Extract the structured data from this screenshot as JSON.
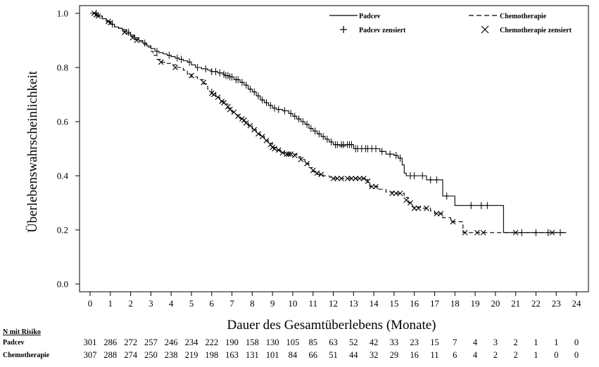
{
  "chart_data": {
    "type": "line",
    "ylabel": "Überlebenswahrscheinlichkeit",
    "xlabel": "Dauer des Gesamtüberlebens (Monate)",
    "xlim": [
      0,
      24
    ],
    "ylim": [
      0,
      1
    ],
    "x_ticks": [
      "0",
      "1",
      "2",
      "3",
      "4",
      "5",
      "6",
      "7",
      "8",
      "9",
      "10",
      "11",
      "12",
      "13",
      "14",
      "15",
      "16",
      "17",
      "18",
      "19",
      "20",
      "21",
      "22",
      "23",
      "24"
    ],
    "y_ticks": [
      "0.0",
      "0.2",
      "0.4",
      "0.6",
      "0.8",
      "1.0"
    ],
    "legend": {
      "line1": "Padcev",
      "line2": "Chemotherapie",
      "censor1": "Padcev zensiert",
      "censor2": "Chemotherapie zensiert"
    },
    "series": [
      {
        "name": "Padcev",
        "color": "#000000",
        "style": "solid",
        "steps": [
          [
            0,
            1.0
          ],
          [
            0.2,
            1.0
          ],
          [
            0.4,
            0.99
          ],
          [
            0.6,
            0.98
          ],
          [
            0.8,
            0.97
          ],
          [
            1.0,
            0.96
          ],
          [
            1.2,
            0.95
          ],
          [
            1.4,
            0.945
          ],
          [
            1.6,
            0.94
          ],
          [
            1.8,
            0.93
          ],
          [
            2.0,
            0.92
          ],
          [
            2.2,
            0.91
          ],
          [
            2.4,
            0.9
          ],
          [
            2.6,
            0.89
          ],
          [
            2.8,
            0.88
          ],
          [
            3.0,
            0.87
          ],
          [
            3.2,
            0.86
          ],
          [
            3.4,
            0.855
          ],
          [
            3.6,
            0.85
          ],
          [
            3.8,
            0.845
          ],
          [
            4.0,
            0.84
          ],
          [
            4.2,
            0.835
          ],
          [
            4.4,
            0.83
          ],
          [
            4.6,
            0.825
          ],
          [
            4.8,
            0.82
          ],
          [
            5.0,
            0.81
          ],
          [
            5.2,
            0.8
          ],
          [
            5.5,
            0.795
          ],
          [
            5.8,
            0.79
          ],
          [
            6.0,
            0.785
          ],
          [
            6.3,
            0.78
          ],
          [
            6.6,
            0.77
          ],
          [
            6.9,
            0.765
          ],
          [
            7.1,
            0.755
          ],
          [
            7.4,
            0.745
          ],
          [
            7.6,
            0.735
          ],
          [
            7.8,
            0.72
          ],
          [
            8.0,
            0.71
          ],
          [
            8.2,
            0.695
          ],
          [
            8.4,
            0.68
          ],
          [
            8.6,
            0.67
          ],
          [
            8.8,
            0.66
          ],
          [
            9.0,
            0.65
          ],
          [
            9.2,
            0.645
          ],
          [
            9.5,
            0.64
          ],
          [
            9.8,
            0.63
          ],
          [
            10.0,
            0.62
          ],
          [
            10.2,
            0.61
          ],
          [
            10.4,
            0.6
          ],
          [
            10.6,
            0.59
          ],
          [
            10.8,
            0.575
          ],
          [
            11.0,
            0.565
          ],
          [
            11.2,
            0.555
          ],
          [
            11.4,
            0.545
          ],
          [
            11.6,
            0.535
          ],
          [
            11.8,
            0.525
          ],
          [
            12.0,
            0.515
          ],
          [
            12.3,
            0.51
          ],
          [
            12.6,
            0.515
          ],
          [
            13.0,
            0.5
          ],
          [
            13.5,
            0.5
          ],
          [
            14.0,
            0.5
          ],
          [
            14.3,
            0.49
          ],
          [
            14.6,
            0.48
          ],
          [
            15.0,
            0.475
          ],
          [
            15.2,
            0.465
          ],
          [
            15.4,
            0.44
          ],
          [
            15.5,
            0.41
          ],
          [
            15.6,
            0.4
          ],
          [
            16.2,
            0.4
          ],
          [
            16.6,
            0.385
          ],
          [
            17.3,
            0.385
          ],
          [
            17.4,
            0.325
          ],
          [
            17.8,
            0.325
          ],
          [
            18.0,
            0.29
          ],
          [
            20.4,
            0.29
          ],
          [
            20.4,
            0.19
          ],
          [
            23.5,
            0.19
          ]
        ],
        "censored": [
          [
            0.3,
            1.0
          ],
          [
            1.1,
            0.96
          ],
          [
            1.9,
            0.93
          ],
          [
            2.7,
            0.89
          ],
          [
            3.3,
            0.86
          ],
          [
            3.9,
            0.845
          ],
          [
            4.3,
            0.835
          ],
          [
            4.5,
            0.83
          ],
          [
            4.9,
            0.82
          ],
          [
            5.3,
            0.8
          ],
          [
            5.7,
            0.795
          ],
          [
            6.0,
            0.785
          ],
          [
            6.2,
            0.785
          ],
          [
            6.4,
            0.78
          ],
          [
            6.6,
            0.775
          ],
          [
            6.7,
            0.77
          ],
          [
            6.8,
            0.77
          ],
          [
            6.9,
            0.765
          ],
          [
            7.0,
            0.765
          ],
          [
            7.2,
            0.755
          ],
          [
            7.3,
            0.755
          ],
          [
            7.5,
            0.745
          ],
          [
            7.7,
            0.735
          ],
          [
            7.9,
            0.72
          ],
          [
            8.1,
            0.71
          ],
          [
            8.3,
            0.695
          ],
          [
            8.5,
            0.68
          ],
          [
            8.7,
            0.67
          ],
          [
            8.9,
            0.66
          ],
          [
            9.1,
            0.65
          ],
          [
            9.3,
            0.645
          ],
          [
            9.6,
            0.64
          ],
          [
            9.9,
            0.63
          ],
          [
            10.1,
            0.62
          ],
          [
            10.3,
            0.61
          ],
          [
            10.5,
            0.6
          ],
          [
            10.7,
            0.59
          ],
          [
            10.9,
            0.575
          ],
          [
            11.1,
            0.565
          ],
          [
            11.3,
            0.555
          ],
          [
            11.5,
            0.545
          ],
          [
            11.7,
            0.535
          ],
          [
            11.9,
            0.525
          ],
          [
            12.1,
            0.515
          ],
          [
            12.2,
            0.515
          ],
          [
            12.4,
            0.515
          ],
          [
            12.5,
            0.515
          ],
          [
            12.7,
            0.515
          ],
          [
            12.8,
            0.515
          ],
          [
            12.9,
            0.515
          ],
          [
            13.1,
            0.5
          ],
          [
            13.2,
            0.5
          ],
          [
            13.4,
            0.5
          ],
          [
            13.6,
            0.5
          ],
          [
            13.7,
            0.5
          ],
          [
            13.9,
            0.5
          ],
          [
            14.1,
            0.5
          ],
          [
            14.4,
            0.49
          ],
          [
            14.8,
            0.48
          ],
          [
            15.1,
            0.475
          ],
          [
            15.3,
            0.465
          ],
          [
            15.8,
            0.4
          ],
          [
            16.0,
            0.4
          ],
          [
            16.4,
            0.4
          ],
          [
            16.8,
            0.385
          ],
          [
            17.1,
            0.385
          ],
          [
            17.6,
            0.325
          ],
          [
            18.8,
            0.29
          ],
          [
            19.3,
            0.29
          ],
          [
            19.6,
            0.29
          ],
          [
            21.3,
            0.19
          ],
          [
            22.0,
            0.19
          ],
          [
            22.6,
            0.19
          ],
          [
            23.2,
            0.19
          ]
        ]
      },
      {
        "name": "Chemotherapie",
        "color": "#000000",
        "style": "dashed",
        "steps": [
          [
            0,
            1.0
          ],
          [
            0.2,
            1.0
          ],
          [
            0.4,
            0.99
          ],
          [
            0.6,
            0.98
          ],
          [
            0.8,
            0.97
          ],
          [
            1.0,
            0.96
          ],
          [
            1.2,
            0.95
          ],
          [
            1.4,
            0.945
          ],
          [
            1.6,
            0.935
          ],
          [
            1.8,
            0.925
          ],
          [
            2.0,
            0.915
          ],
          [
            2.2,
            0.905
          ],
          [
            2.4,
            0.895
          ],
          [
            2.6,
            0.885
          ],
          [
            2.8,
            0.875
          ],
          [
            3.0,
            0.86
          ],
          [
            3.1,
            0.845
          ],
          [
            3.3,
            0.83
          ],
          [
            3.5,
            0.82
          ],
          [
            3.8,
            0.815
          ],
          [
            4.0,
            0.81
          ],
          [
            4.3,
            0.8
          ],
          [
            4.6,
            0.79
          ],
          [
            4.8,
            0.775
          ],
          [
            5.0,
            0.765
          ],
          [
            5.3,
            0.755
          ],
          [
            5.6,
            0.74
          ],
          [
            5.8,
            0.72
          ],
          [
            6.0,
            0.705
          ],
          [
            6.2,
            0.69
          ],
          [
            6.4,
            0.675
          ],
          [
            6.6,
            0.665
          ],
          [
            6.8,
            0.65
          ],
          [
            7.0,
            0.635
          ],
          [
            7.2,
            0.625
          ],
          [
            7.4,
            0.61
          ],
          [
            7.6,
            0.6
          ],
          [
            7.8,
            0.585
          ],
          [
            8.0,
            0.57
          ],
          [
            8.2,
            0.555
          ],
          [
            8.4,
            0.545
          ],
          [
            8.6,
            0.53
          ],
          [
            8.8,
            0.52
          ],
          [
            9.0,
            0.505
          ],
          [
            9.2,
            0.495
          ],
          [
            9.4,
            0.485
          ],
          [
            9.6,
            0.48
          ],
          [
            10.0,
            0.48
          ],
          [
            10.2,
            0.47
          ],
          [
            10.4,
            0.46
          ],
          [
            10.6,
            0.445
          ],
          [
            10.8,
            0.43
          ],
          [
            11.0,
            0.415
          ],
          [
            11.2,
            0.405
          ],
          [
            11.5,
            0.4
          ],
          [
            11.8,
            0.395
          ],
          [
            12.0,
            0.39
          ],
          [
            13.6,
            0.39
          ],
          [
            13.7,
            0.375
          ],
          [
            13.8,
            0.36
          ],
          [
            14.2,
            0.35
          ],
          [
            14.6,
            0.34
          ],
          [
            15.0,
            0.335
          ],
          [
            15.3,
            0.335
          ],
          [
            15.5,
            0.32
          ],
          [
            15.7,
            0.3
          ],
          [
            15.9,
            0.285
          ],
          [
            16.3,
            0.28
          ],
          [
            16.8,
            0.27
          ],
          [
            17.0,
            0.26
          ],
          [
            17.4,
            0.245
          ],
          [
            17.8,
            0.23
          ],
          [
            18.4,
            0.215
          ],
          [
            18.4,
            0.19
          ],
          [
            23.5,
            0.19
          ]
        ],
        "censored": [
          [
            0.2,
            1.0
          ],
          [
            0.3,
            0.995
          ],
          [
            0.4,
            0.99
          ],
          [
            0.9,
            0.97
          ],
          [
            1.0,
            0.965
          ],
          [
            1.7,
            0.93
          ],
          [
            2.1,
            0.91
          ],
          [
            2.3,
            0.9
          ],
          [
            3.5,
            0.82
          ],
          [
            4.2,
            0.8
          ],
          [
            5.0,
            0.77
          ],
          [
            5.6,
            0.745
          ],
          [
            6.0,
            0.705
          ],
          [
            6.1,
            0.7
          ],
          [
            6.3,
            0.69
          ],
          [
            6.5,
            0.675
          ],
          [
            6.6,
            0.67
          ],
          [
            6.8,
            0.655
          ],
          [
            6.9,
            0.645
          ],
          [
            7.1,
            0.635
          ],
          [
            7.3,
            0.62
          ],
          [
            7.5,
            0.61
          ],
          [
            7.6,
            0.605
          ],
          [
            7.7,
            0.595
          ],
          [
            7.9,
            0.585
          ],
          [
            8.1,
            0.57
          ],
          [
            8.3,
            0.555
          ],
          [
            8.5,
            0.545
          ],
          [
            8.7,
            0.53
          ],
          [
            8.9,
            0.515
          ],
          [
            9.0,
            0.505
          ],
          [
            9.1,
            0.5
          ],
          [
            9.3,
            0.495
          ],
          [
            9.5,
            0.485
          ],
          [
            9.7,
            0.48
          ],
          [
            9.8,
            0.48
          ],
          [
            9.9,
            0.48
          ],
          [
            10.1,
            0.475
          ],
          [
            10.4,
            0.46
          ],
          [
            10.7,
            0.445
          ],
          [
            11.0,
            0.42
          ],
          [
            11.2,
            0.41
          ],
          [
            11.4,
            0.405
          ],
          [
            12.0,
            0.39
          ],
          [
            12.2,
            0.39
          ],
          [
            12.4,
            0.39
          ],
          [
            12.7,
            0.39
          ],
          [
            12.9,
            0.39
          ],
          [
            13.1,
            0.39
          ],
          [
            13.3,
            0.39
          ],
          [
            13.5,
            0.39
          ],
          [
            13.7,
            0.38
          ],
          [
            13.9,
            0.36
          ],
          [
            14.1,
            0.36
          ],
          [
            14.9,
            0.335
          ],
          [
            15.1,
            0.335
          ],
          [
            15.3,
            0.335
          ],
          [
            15.6,
            0.31
          ],
          [
            15.8,
            0.3
          ],
          [
            16.0,
            0.28
          ],
          [
            16.2,
            0.28
          ],
          [
            16.6,
            0.28
          ],
          [
            17.1,
            0.26
          ],
          [
            17.3,
            0.26
          ],
          [
            17.9,
            0.23
          ],
          [
            18.5,
            0.19
          ],
          [
            19.1,
            0.19
          ],
          [
            19.4,
            0.19
          ],
          [
            21.0,
            0.19
          ],
          [
            22.8,
            0.19
          ]
        ]
      }
    ]
  },
  "risk_table": {
    "title": "N mit Risiko",
    "rows": [
      {
        "label": "Padcev",
        "values": [
          "301",
          "286",
          "272",
          "257",
          "246",
          "234",
          "222",
          "190",
          "158",
          "130",
          "105",
          "85",
          "63",
          "52",
          "42",
          "33",
          "23",
          "15",
          "7",
          "4",
          "3",
          "2",
          "1",
          "1",
          "0"
        ]
      },
      {
        "label": "Chemotherapie",
        "values": [
          "307",
          "288",
          "274",
          "250",
          "238",
          "219",
          "198",
          "163",
          "131",
          "101",
          "84",
          "66",
          "51",
          "44",
          "32",
          "29",
          "16",
          "11",
          "6",
          "4",
          "2",
          "2",
          "1",
          "0",
          "0"
        ]
      }
    ]
  }
}
